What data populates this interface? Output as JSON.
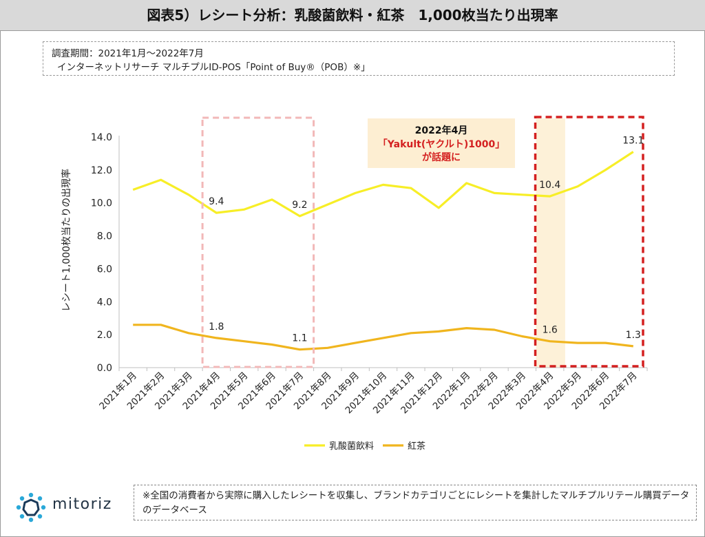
{
  "title": "図表5）レシート分析：乳酸菌飲料・紅茶　1,000枚当たり出現率",
  "info": {
    "line1": "調査期間：2021年1月～2022年7月",
    "line2": "インターネットリサーチ マルチプルID-POS「Point of Buy®（POB）※」"
  },
  "callout": {
    "line1": "2022年4月",
    "line2": "「Yakult(ヤクルト)1000」",
    "line3": "が話題に"
  },
  "note": "※全国の消費者から実際に購入したレシートを収集し、ブランドカテゴリごとにレシートを集計したマルチプルリテール購買データのデータベース",
  "logo": {
    "text": "mitoriz",
    "icon": "molecule-logo-icon"
  },
  "colors": {
    "series1": "#f7ee27",
    "series2": "#f0b51e",
    "highlight_dashed_light": "#f2b8b8",
    "highlight_dashed_red": "#d42020",
    "highlight_band": "#fdf1d8",
    "callout_bg": "#fdeed2",
    "callout_accent": "#d42020"
  },
  "chart_data": {
    "type": "line",
    "categories": [
      "2021年1月",
      "2021年2月",
      "2021年3月",
      "2021年4月",
      "2021年5月",
      "2021年6月",
      "2021年7月",
      "2021年8月",
      "2021年9月",
      "2021年10月",
      "2021年11月",
      "2021年12月",
      "2022年1月",
      "2022年2月",
      "2022年3月",
      "2022年4月",
      "2022年5月",
      "2022年6月",
      "2022年7月"
    ],
    "ylabel": "レシート1,000枚当たりの出現率",
    "ylim": [
      0,
      14
    ],
    "yticks": [
      "0.0",
      "2.0",
      "4.0",
      "6.0",
      "8.0",
      "10.0",
      "12.0",
      "14.0"
    ],
    "grid": false,
    "legend_position": "bottom",
    "series": [
      {
        "name": "乳酸菌飲料",
        "values": [
          10.8,
          11.4,
          10.5,
          9.4,
          9.6,
          10.2,
          9.2,
          9.9,
          10.6,
          11.1,
          10.9,
          9.7,
          11.2,
          10.6,
          10.5,
          10.4,
          11.0,
          12.0,
          13.1
        ]
      },
      {
        "name": "紅茶",
        "values": [
          2.6,
          2.6,
          2.1,
          1.8,
          1.6,
          1.4,
          1.1,
          1.2,
          1.5,
          1.8,
          2.1,
          2.2,
          2.4,
          2.3,
          1.9,
          1.6,
          1.5,
          1.5,
          1.3
        ]
      }
    ],
    "data_labels": [
      {
        "series": 0,
        "index": 3,
        "text": "9.4"
      },
      {
        "series": 0,
        "index": 6,
        "text": "9.2"
      },
      {
        "series": 0,
        "index": 15,
        "text": "10.4"
      },
      {
        "series": 0,
        "index": 18,
        "text": "13.1"
      },
      {
        "series": 1,
        "index": 3,
        "text": "1.8"
      },
      {
        "series": 1,
        "index": 6,
        "text": "1.1"
      },
      {
        "series": 1,
        "index": 15,
        "text": "1.6"
      },
      {
        "series": 1,
        "index": 18,
        "text": "1.3"
      }
    ],
    "highlights": [
      {
        "from_index": 3,
        "to_index": 6,
        "style": "light-dashed"
      },
      {
        "from_index": 15,
        "to_index": 18,
        "style": "red-dashed-with-band"
      }
    ]
  }
}
